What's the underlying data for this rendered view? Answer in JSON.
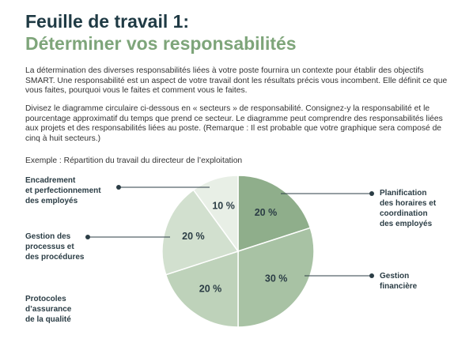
{
  "header": {
    "title": "Feuille de travail 1:",
    "subtitle": "Déterminer vos responsabilités"
  },
  "paragraphs": [
    "La détermination des diverses responsabilités liées à votre poste fournira un contexte pour établir des objectifs SMART. Une responsabilité est un aspect de votre travail dont les résultats précis vous incombent. Elle définit ce que vous faites, pourquoi vous le faites et comment vous le faites.",
    "Divisez le diagramme circulaire ci-dessous en « secteurs » de responsabilité. Consignez-y la responsabilité et le pourcentage approximatif du temps que prend ce secteur. Le diagramme peut comprendre des responsabilités liées aux projets et des responsabilités liées au poste. (Remarque : Il est probable que votre graphique sera composé de cinq à huit secteurs.)"
  ],
  "chart_data": {
    "type": "pie",
    "title": "Exemple : Répartition du travail du directeur de l’exploitation",
    "categories": [
      "Planification\ndes horaires et\ncoordination\ndes employés",
      "Gestion\nfinancière",
      "Protocoles\nd’assurance\nde la qualité",
      "Gestion des\nprocessus et\ndes procédures",
      "Encadrement\net perfectionnement\ndes employés"
    ],
    "values": [
      20,
      30,
      20,
      20,
      10
    ],
    "value_labels": [
      "20 %",
      "30 %",
      "20 %",
      "20 %",
      "10 %"
    ],
    "colors": [
      "#8fae8b",
      "#a8c2a4",
      "#bed2ba",
      "#d2e0cf",
      "#e8efe6"
    ]
  }
}
